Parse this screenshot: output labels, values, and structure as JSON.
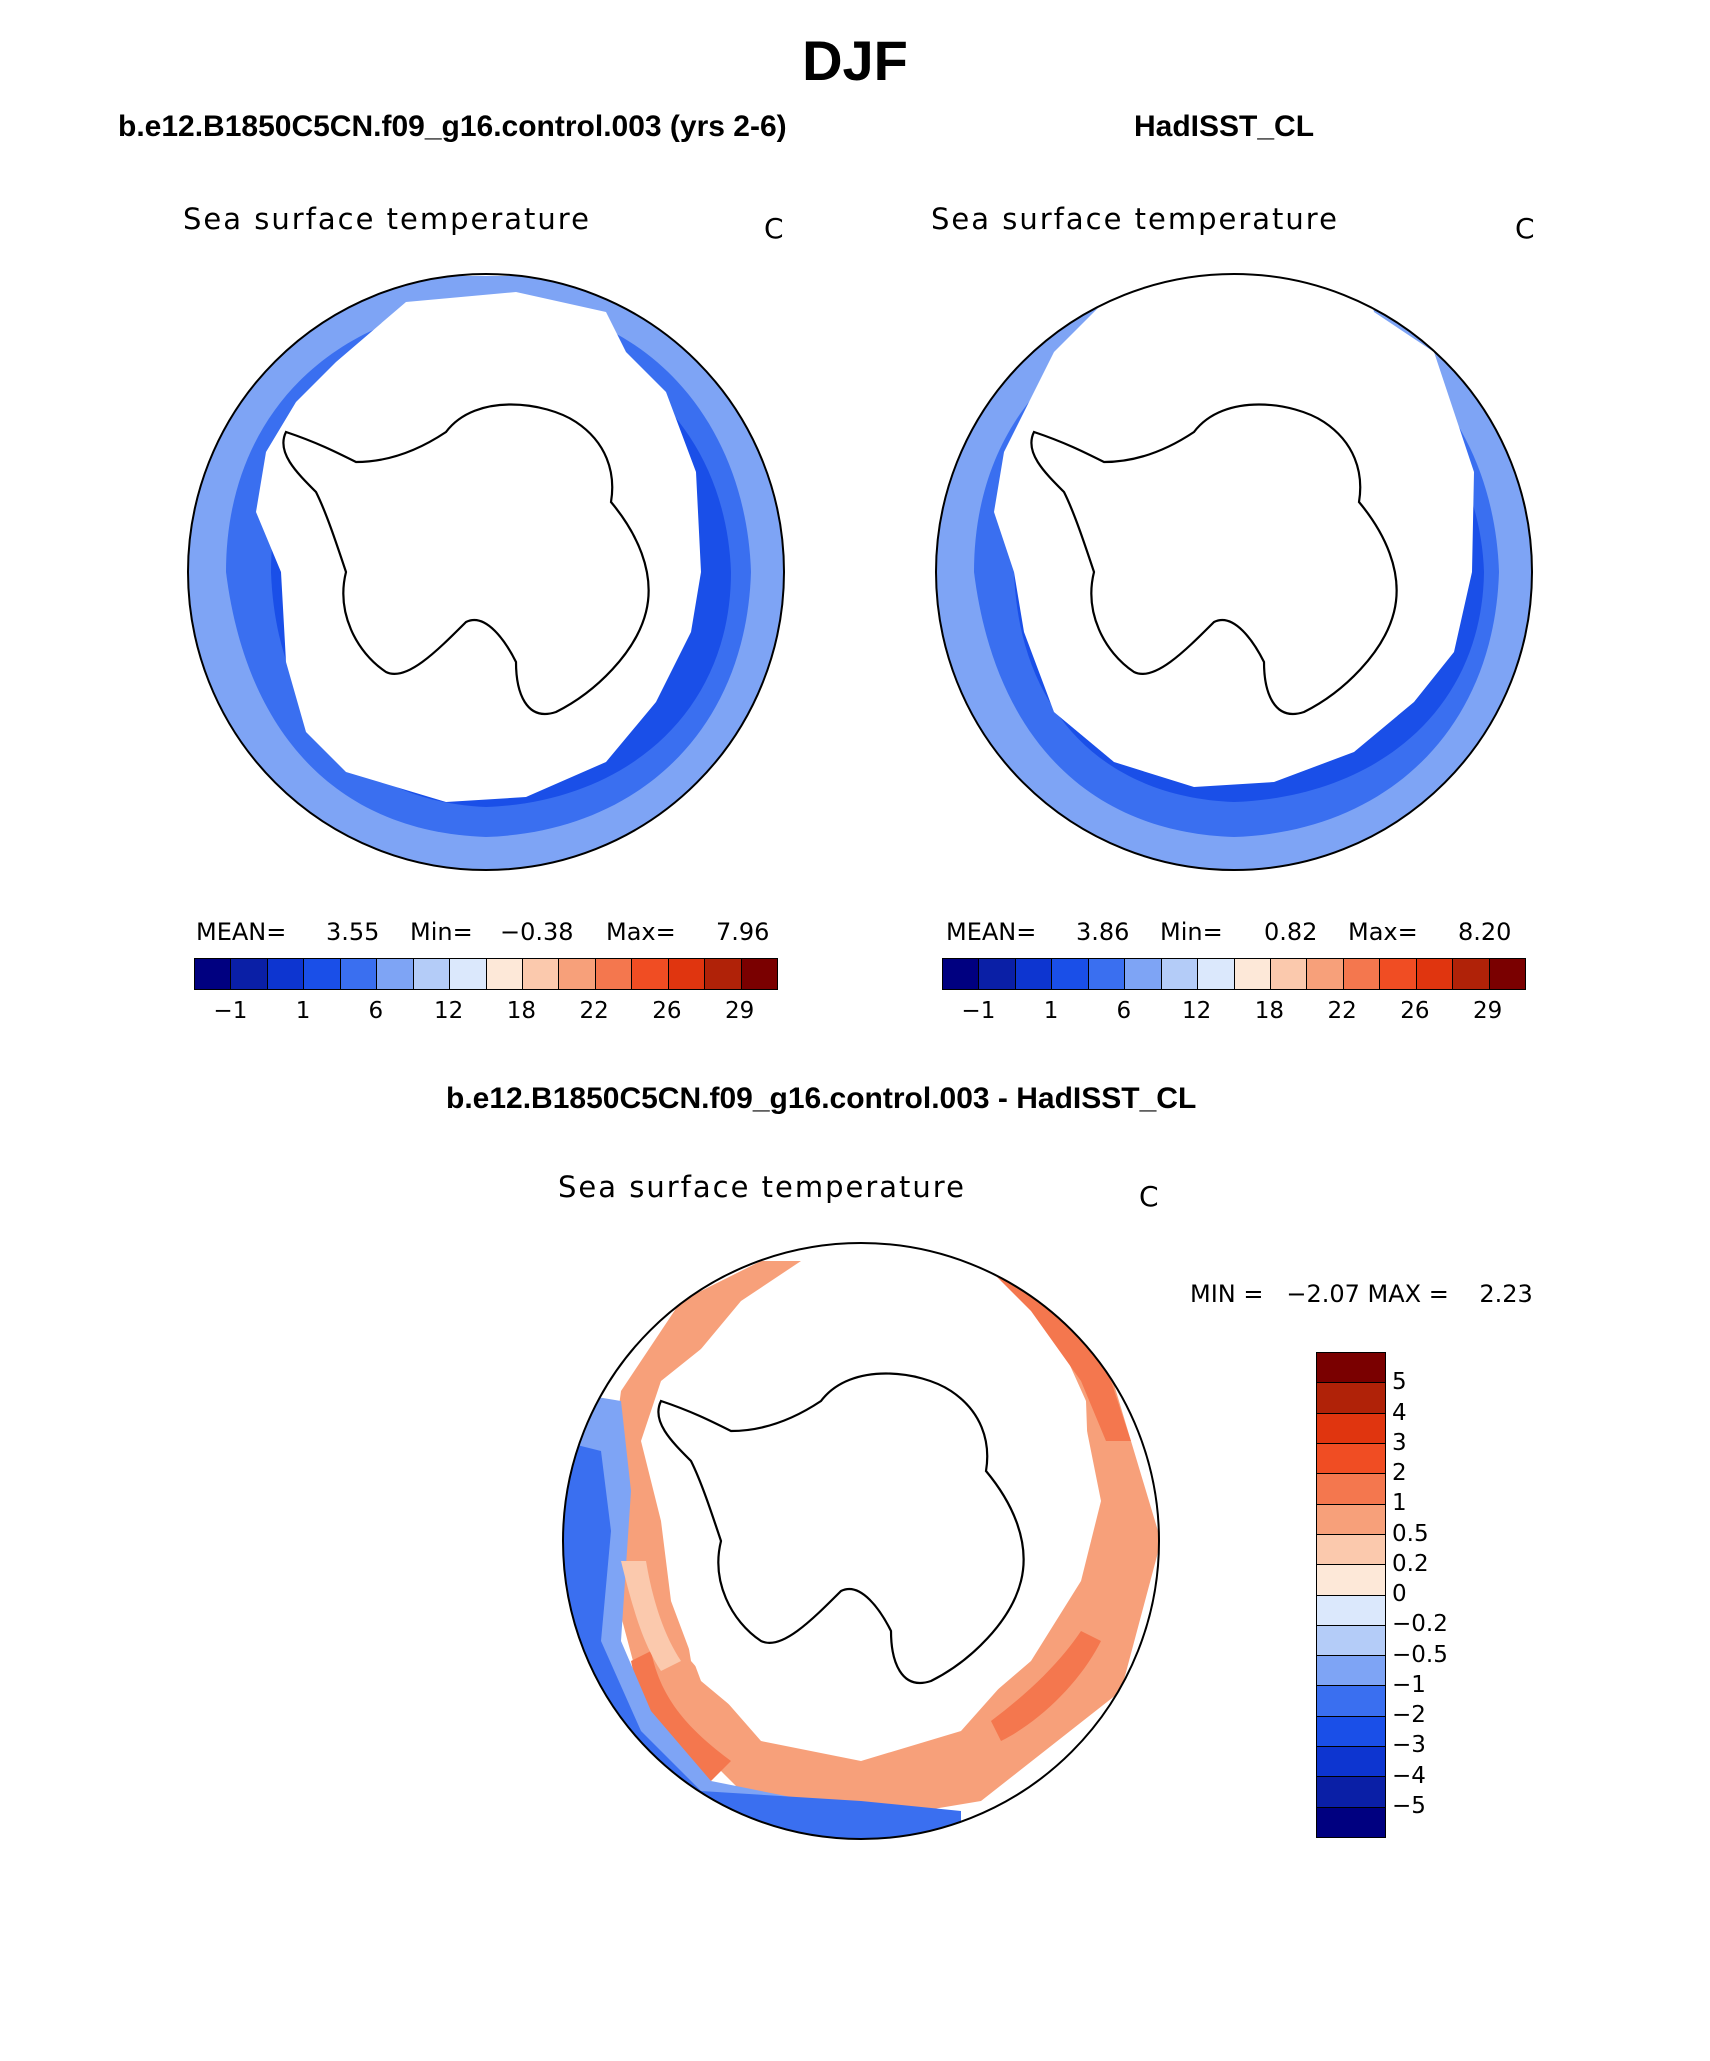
{
  "figure": {
    "season": "DJF",
    "variable_title": "Sea surface temperature",
    "units": "C"
  },
  "panels": {
    "model": {
      "title": "b.e12.B1850C5CN.f09_g16.control.003 (yrs 2-6)",
      "plot_title": "Sea surface temperature",
      "units": "C",
      "mean_label": "MEAN=",
      "mean_value": "3.55",
      "min_label": "Min=",
      "min_value": "−0.38",
      "max_label": "Max=",
      "max_value": "7.96"
    },
    "obs": {
      "title": "HadISST_CL",
      "plot_title": "Sea surface temperature",
      "units": "C",
      "mean_label": "MEAN=",
      "mean_value": "3.86",
      "min_label": "Min=",
      "min_value": "0.82",
      "max_label": "Max=",
      "max_value": "8.20"
    },
    "diff": {
      "title": "b.e12.B1850C5CN.f09_g16.control.003 - HadISST_CL",
      "plot_title": "Sea surface temperature",
      "units": "C",
      "minmax_text": "MIN =   −2.07 MAX =    2.23"
    }
  },
  "colorbar_sst": {
    "colors": [
      "#000080",
      "#0a1fa6",
      "#0d35d0",
      "#1a4fe8",
      "#3a6ff0",
      "#7ea4f5",
      "#b4ccf8",
      "#dbe8fc",
      "#fde8d8",
      "#fbc9ad",
      "#f7a07a",
      "#f4774e",
      "#f04d23",
      "#e0350f",
      "#b02208",
      "#7a0000"
    ],
    "tick_labels": [
      "−1",
      "1",
      "6",
      "12",
      "18",
      "22",
      "26",
      "29"
    ]
  },
  "colorbar_diff": {
    "colors": [
      "#000080",
      "#0a1fa6",
      "#0d35d0",
      "#1a4fe8",
      "#3a6ff0",
      "#7ea4f5",
      "#b4ccf8",
      "#dbe8fc",
      "#fde8d8",
      "#fbc9ad",
      "#f7a07a",
      "#f4774e",
      "#f04d23",
      "#e0350f",
      "#b02208",
      "#7a0000"
    ],
    "tick_labels": [
      "5",
      "4",
      "3",
      "2",
      "1",
      "0.5",
      "0.2",
      "0",
      "−0.2",
      "−0.5",
      "−1",
      "−2",
      "−3",
      "−4",
      "−5"
    ]
  },
  "map_colors": {
    "sst_outer": "#7ea4f5",
    "sst_mid": "#3a6ff0",
    "sst_inner": "#1a4fe8",
    "ice": "#ffffff",
    "diff_warm": "#f4774e",
    "diff_warm_light": "#f7a07a",
    "diff_pale": "#fbc9ad",
    "diff_cool": "#7ea4f5",
    "diff_cold": "#3a6ff0"
  }
}
